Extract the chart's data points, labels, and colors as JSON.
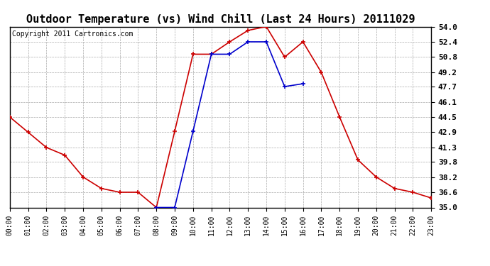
{
  "title": "Outdoor Temperature (vs) Wind Chill (Last 24 Hours) 20111029",
  "copyright": "Copyright 2011 Cartronics.com",
  "hours": [
    "00:00",
    "01:00",
    "02:00",
    "03:00",
    "04:00",
    "05:00",
    "06:00",
    "07:00",
    "08:00",
    "09:00",
    "10:00",
    "11:00",
    "12:00",
    "13:00",
    "14:00",
    "15:00",
    "16:00",
    "17:00",
    "18:00",
    "19:00",
    "20:00",
    "21:00",
    "22:00",
    "23:00"
  ],
  "temp": [
    44.5,
    42.9,
    41.3,
    40.5,
    38.2,
    37.0,
    36.6,
    36.6,
    35.0,
    43.0,
    51.1,
    51.1,
    52.4,
    53.6,
    54.0,
    50.8,
    52.4,
    49.2,
    44.5,
    40.0,
    38.2,
    37.0,
    36.6,
    36.0
  ],
  "windchill": [
    null,
    null,
    null,
    null,
    null,
    null,
    null,
    null,
    35.0,
    35.0,
    43.0,
    51.1,
    51.1,
    52.4,
    52.4,
    47.7,
    48.0,
    null,
    null,
    null,
    null,
    null,
    null,
    null
  ],
  "temp_color": "#cc0000",
  "windchill_color": "#0000cc",
  "bg_color": "#ffffff",
  "plot_bg_color": "#ffffff",
  "grid_color": "#aaaaaa",
  "ylim": [
    35.0,
    54.0
  ],
  "yticks": [
    35.0,
    36.6,
    38.2,
    39.8,
    41.3,
    42.9,
    44.5,
    46.1,
    47.7,
    49.2,
    50.8,
    52.4,
    54.0
  ],
  "title_fontsize": 11,
  "copyright_fontsize": 7,
  "tick_fontsize": 7,
  "ytick_fontsize": 8
}
